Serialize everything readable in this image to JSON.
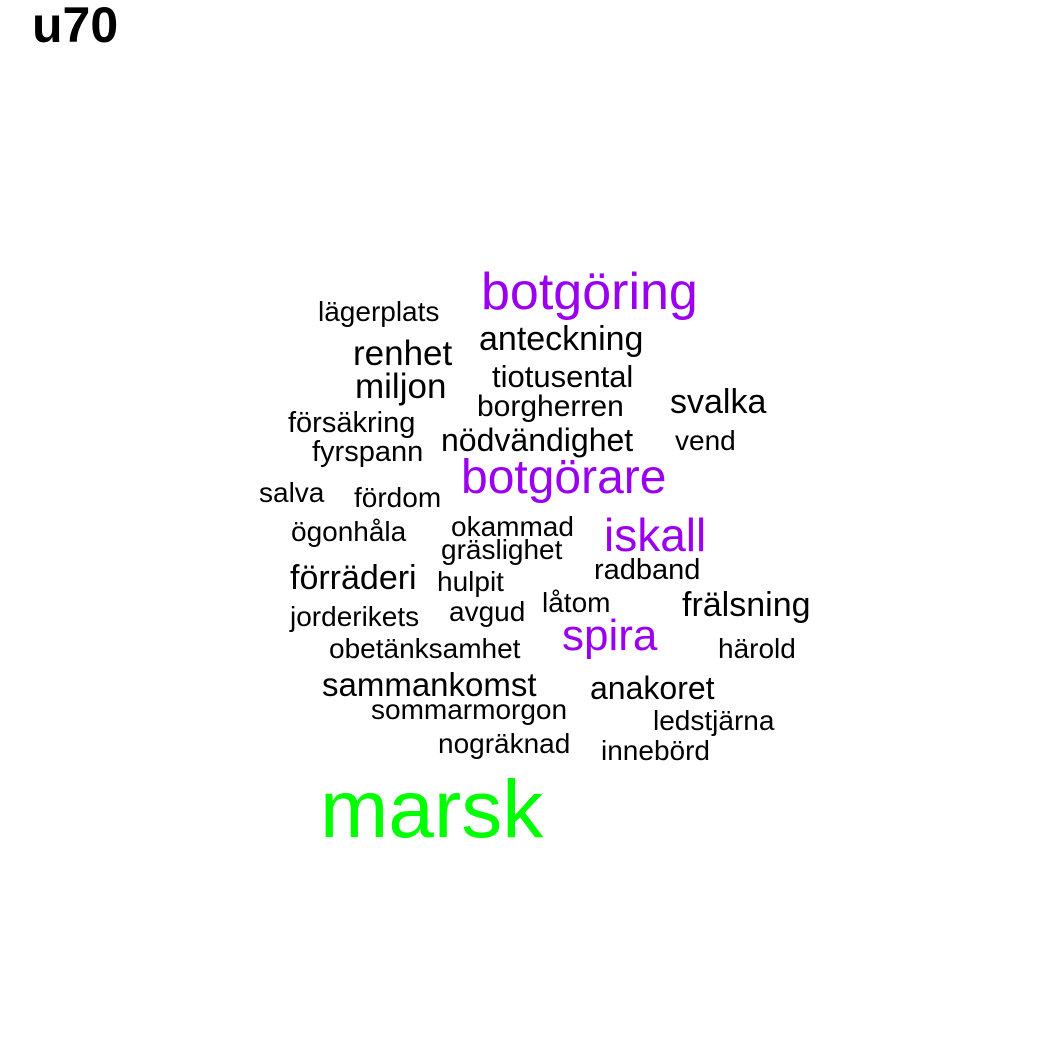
{
  "title": "u70",
  "colors": {
    "high": "#00ff00",
    "mid": "#9b00ee",
    "low": "#000000"
  },
  "words": [
    {
      "text": "marsk",
      "level": "high"
    },
    {
      "text": "botgöring",
      "level": "mid"
    },
    {
      "text": "botgörare",
      "level": "mid"
    },
    {
      "text": "iskall",
      "level": "mid"
    },
    {
      "text": "spira",
      "level": "mid"
    },
    {
      "text": "lägerplats",
      "level": "low"
    },
    {
      "text": "anteckning",
      "level": "low"
    },
    {
      "text": "renhet",
      "level": "low"
    },
    {
      "text": "tiotusental",
      "level": "low"
    },
    {
      "text": "miljon",
      "level": "low"
    },
    {
      "text": "borgherren",
      "level": "low"
    },
    {
      "text": "svalka",
      "level": "low"
    },
    {
      "text": "försäkring",
      "level": "low"
    },
    {
      "text": "nödvändighet",
      "level": "low"
    },
    {
      "text": "vend",
      "level": "low"
    },
    {
      "text": "fyrspann",
      "level": "low"
    },
    {
      "text": "salva",
      "level": "low"
    },
    {
      "text": "fördom",
      "level": "low"
    },
    {
      "text": "ögonhåla",
      "level": "low"
    },
    {
      "text": "okammad",
      "level": "low"
    },
    {
      "text": "gräslighet",
      "level": "low"
    },
    {
      "text": "radband",
      "level": "low"
    },
    {
      "text": "förräderi",
      "level": "low"
    },
    {
      "text": "hulpit",
      "level": "low"
    },
    {
      "text": "låtom",
      "level": "low"
    },
    {
      "text": "frälsning",
      "level": "low"
    },
    {
      "text": "jorderikets",
      "level": "low"
    },
    {
      "text": "avgud",
      "level": "low"
    },
    {
      "text": "obetänksamhet",
      "level": "low"
    },
    {
      "text": "härold",
      "level": "low"
    },
    {
      "text": "sammankomst",
      "level": "low"
    },
    {
      "text": "anakoret",
      "level": "low"
    },
    {
      "text": "sommarmorgon",
      "level": "low"
    },
    {
      "text": "ledstjärna",
      "level": "low"
    },
    {
      "text": "nogräknad",
      "level": "low"
    },
    {
      "text": "innebörd",
      "level": "low"
    }
  ]
}
